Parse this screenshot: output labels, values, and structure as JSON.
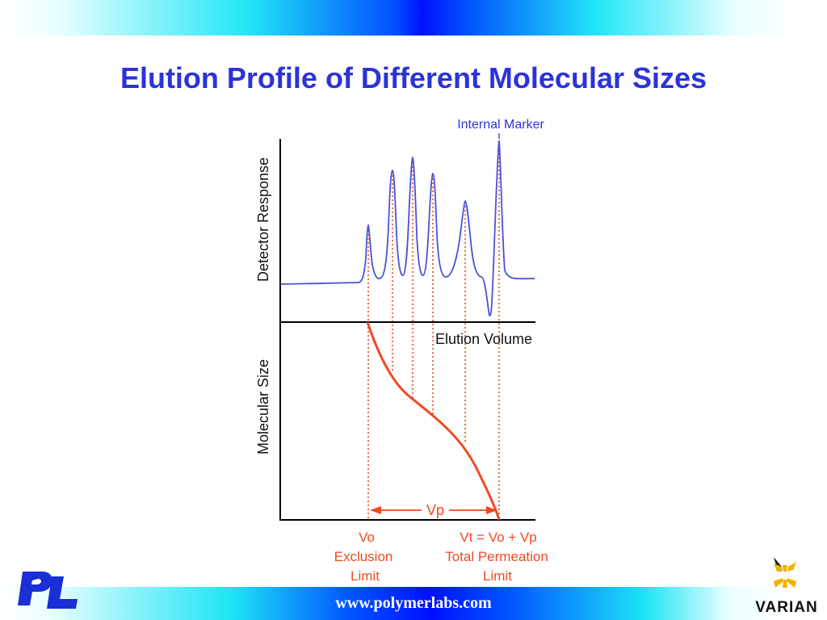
{
  "title": "Elution Profile of Different Molecular Sizes",
  "footer": {
    "url": "www.polymerlabs.com"
  },
  "logos": {
    "left": "PL",
    "right": "VARIAN"
  },
  "diagram": {
    "internal_marker_label": "Internal Marker",
    "upper_ylabel": "Detector Response",
    "lower_ylabel": "Molecular Size",
    "xaxis_label": "Elution Volume",
    "vp_label": "Vp",
    "vo": {
      "line1": "Vo",
      "line2": "Exclusion",
      "line3": "Limit"
    },
    "vt": {
      "line1": "Vt = Vo + Vp",
      "line2": "Total Permeation",
      "line3": "Limit"
    }
  },
  "colors": {
    "title": "#2c33d8",
    "trace": "#4a52d6",
    "curve": "#f04a22",
    "axis": "#000000"
  }
}
